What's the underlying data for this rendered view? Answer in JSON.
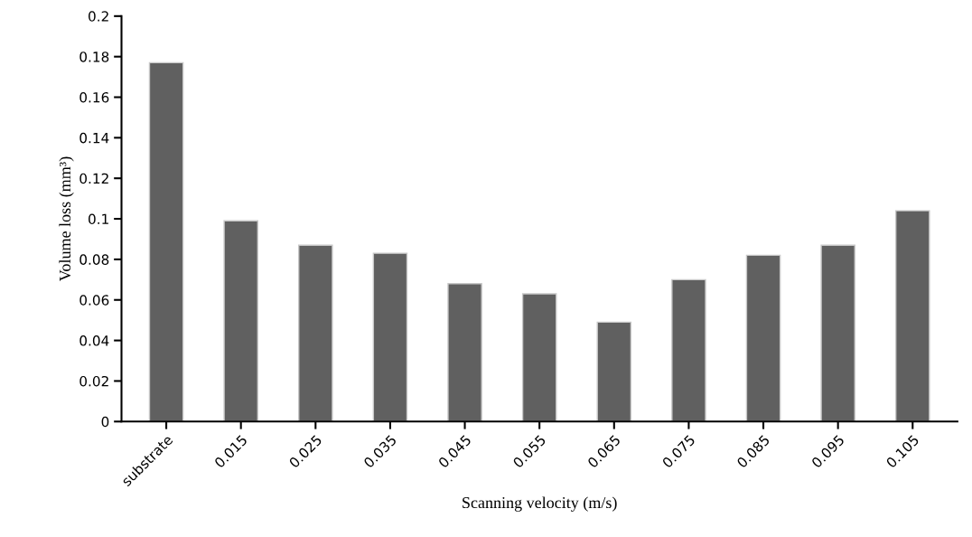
{
  "chart_data": {
    "type": "bar",
    "xlabel": "Scanning velocity (m/s)",
    "ylabel": "Volume loss (mm³)",
    "categories": [
      "substrate",
      "0.015",
      "0.025",
      "0.035",
      "0.045",
      "0.055",
      "0.065",
      "0.075",
      "0.085",
      "0.095",
      "0.105"
    ],
    "values": [
      0.177,
      0.099,
      0.087,
      0.083,
      0.068,
      0.063,
      0.049,
      0.07,
      0.082,
      0.087,
      0.104
    ],
    "color": "#606060",
    "ylim": [
      0,
      0.2
    ],
    "yticks": [
      {
        "value": 0,
        "label": "0"
      },
      0.02,
      0.04,
      0.06,
      0.08,
      {
        "value": 0.1,
        "label": "0.1"
      },
      0.12,
      0.14,
      0.16,
      0.18,
      {
        "value": 0.2,
        "label": "0.2"
      }
    ],
    "grid": false,
    "legend": false
  }
}
